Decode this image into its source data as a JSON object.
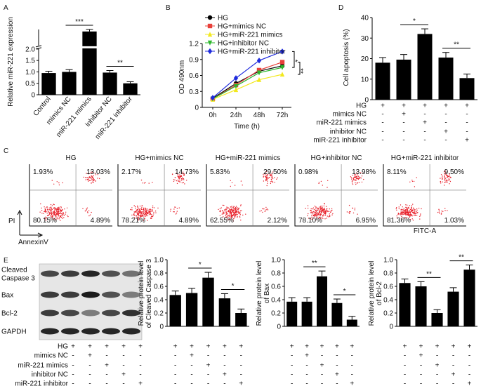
{
  "panel_labels": [
    "A",
    "B",
    "C",
    "D",
    "E"
  ],
  "chart_data": [
    {
      "type": "bar",
      "categories": [
        "Control",
        "mimics NC",
        "miR-221 mimics",
        "inhibitor NC",
        "miR-221  inhibitor"
      ],
      "values": [
        0.95,
        1.0,
        5.5,
        0.97,
        0.5
      ],
      "errors": [
        0.08,
        0.1,
        0.5,
        0.09,
        0.07
      ],
      "ylim": [
        0,
        6
      ],
      "axis_break": 2,
      "yticks": [
        0,
        0.5,
        {
          "value": 1,
          "label": "1.0"
        },
        1.5,
        {
          "value": 2,
          "label": "2.0"
        }
      ],
      "y_label": [
        "Relative miR-221 expression"
      ],
      "color": "#000000",
      "annotations": [
        "***",
        "**"
      ]
    },
    {
      "type": "line",
      "categories": [
        "0h",
        "24h",
        "48h",
        "72h"
      ],
      "series": [
        {
          "name": "HG",
          "color": "#000000",
          "values": [
            0.17,
            0.45,
            0.68,
            0.78
          ]
        },
        {
          "name": "HG+mimics NC",
          "color": "#e8403a",
          "values": [
            0.16,
            0.42,
            0.7,
            0.85
          ]
        },
        {
          "name": "HG+miR-221 mimics",
          "color": "#f2e81c",
          "values": [
            0.15,
            0.33,
            0.52,
            0.62
          ]
        },
        {
          "name": "HG+inhibitor NC",
          "color": "#2db82d",
          "values": [
            0.16,
            0.4,
            0.65,
            0.75
          ]
        },
        {
          "name": "HG+miR-221 inhibitor",
          "color": "#1f2bdd",
          "values": [
            0.18,
            0.55,
            0.88,
            1.05
          ]
        }
      ],
      "ylim": [
        0,
        1.2
      ],
      "yticks": [
        0,
        0.3,
        0.6,
        0.9,
        1.2
      ],
      "x_label": "Time (h)",
      "y_label": [
        "OD 490nm"
      ],
      "annotations": [
        "*",
        "**"
      ]
    },
    {
      "type": "bar",
      "values": [
        18,
        19.5,
        32,
        20.5,
        10.5
      ],
      "errors": [
        2.5,
        2.5,
        2.5,
        2.5,
        2
      ],
      "ylim": [
        0,
        40
      ],
      "yticks": [
        0,
        10,
        20,
        30,
        40
      ],
      "y_label": [
        "Cell apoptosis (%)"
      ],
      "color": "#000000",
      "annotations": [
        "*",
        "**"
      ]
    },
    {
      "type": "bar",
      "values": [
        0.47,
        0.5,
        0.73,
        0.42,
        0.2
      ],
      "errors": [
        0.06,
        0.07,
        0.08,
        0.07,
        0.06
      ],
      "ylim": [
        0,
        1
      ],
      "yticks": [
        0,
        0.2,
        0.4,
        0.6,
        0.8,
        {
          "value": 1,
          "label": "1.0"
        }
      ],
      "y_label": [
        "Relative protein level",
        "of Cleaved Caspase 3"
      ],
      "color": "#000000",
      "annotations": [
        "*",
        "*"
      ]
    },
    {
      "type": "bar",
      "values": [
        0.37,
        0.37,
        0.75,
        0.35,
        0.1
      ],
      "errors": [
        0.06,
        0.06,
        0.08,
        0.06,
        0.05
      ],
      "ylim": [
        0,
        1
      ],
      "yticks": [
        0,
        0.2,
        0.4,
        0.6,
        0.8,
        {
          "value": 1,
          "label": "1.0"
        }
      ],
      "y_label": [
        "Relative protein level",
        "of Bax"
      ],
      "color": "#000000",
      "annotations": [
        "**",
        "*"
      ]
    },
    {
      "type": "bar",
      "values": [
        0.65,
        0.6,
        0.2,
        0.52,
        0.85
      ],
      "errors": [
        0.06,
        0.07,
        0.05,
        0.06,
        0.07
      ],
      "ylim": [
        0,
        1
      ],
      "yticks": [
        0,
        0.2,
        0.4,
        0.6,
        0.8,
        {
          "value": 1,
          "label": "1.0"
        }
      ],
      "y_label": [
        "Relative protein level",
        "of Bcl-2"
      ],
      "color": "#000000",
      "annotations": [
        "**",
        "**"
      ]
    }
  ],
  "conditions": {
    "labels": [
      "HG",
      "mimics NC",
      "miR-221 mimics",
      "inhibitor NC",
      "miR-221 inhibitor"
    ],
    "signs": [
      [
        "+",
        "+",
        "+",
        "+",
        "+"
      ],
      [
        "-",
        "+",
        "-",
        "-",
        "-"
      ],
      [
        "-",
        "-",
        "+",
        "-",
        "-"
      ],
      [
        "-",
        "-",
        "-",
        "+",
        "-"
      ],
      [
        "-",
        "-",
        "-",
        "-",
        "+"
      ]
    ]
  },
  "flow_panels": [
    {
      "title": "HG",
      "quadrants": [
        "1.93%",
        "13.03%",
        "80.15%",
        "4.89%"
      ]
    },
    {
      "title": "HG+mimics NC",
      "quadrants": [
        "2.17%",
        "14.73%",
        "78.21%",
        "4.89%"
      ]
    },
    {
      "title": "HG+miR-221 mimics",
      "quadrants": [
        "5.83%",
        "29.50%",
        "62.55%",
        "2.12%"
      ]
    },
    {
      "title": "HG+inhibitor NC",
      "quadrants": [
        "0.98%",
        "13.98%",
        "78.10%",
        "6.95%"
      ]
    },
    {
      "title": "HG+miR-221  inhibitor",
      "quadrants": [
        "8.11%",
        "9.50%",
        "81.36%",
        "1.03%"
      ]
    }
  ],
  "flow_axes": {
    "y": "PI",
    "x": "AnnexinV",
    "fitc": "FITC-A"
  },
  "blot": {
    "bands": [
      [
        "Cleaved",
        "Caspase 3"
      ],
      [
        "Bax"
      ],
      [
        "Bcl-2"
      ],
      [
        "GAPDH"
      ]
    ]
  }
}
